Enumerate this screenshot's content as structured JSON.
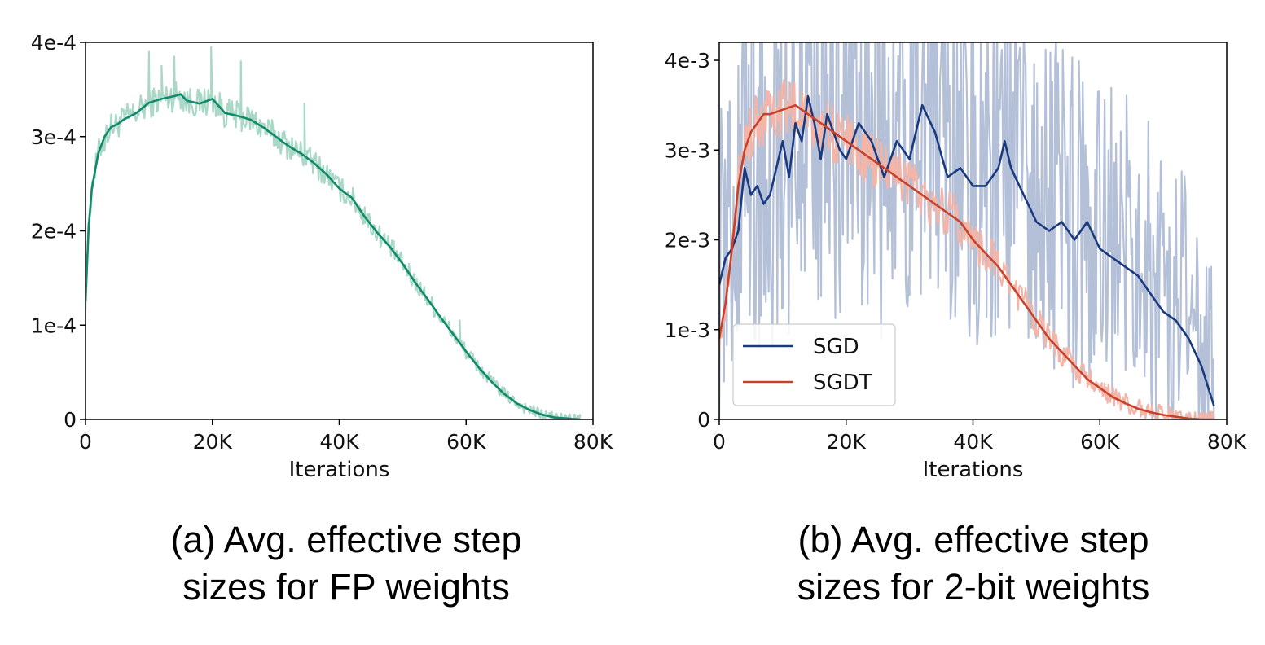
{
  "chart_data": [
    {
      "type": "line",
      "caption_lines": [
        "(a) Avg. effective step",
        "sizes for FP weights"
      ],
      "xlabel": "Iterations",
      "ylabel": "",
      "xlim": [
        0,
        80000
      ],
      "ylim": [
        0,
        0.0004
      ],
      "xticks": [
        0,
        20000,
        40000,
        60000,
        80000
      ],
      "xtick_labels": [
        "0",
        "20K",
        "40K",
        "60K",
        "80K"
      ],
      "yticks": [
        0,
        0.0001,
        0.0002,
        0.0003,
        0.0004
      ],
      "ytick_labels": [
        "0",
        "1e-4",
        "2e-4",
        "3e-4",
        "4e-4"
      ],
      "grid": false,
      "legend": null,
      "series": [
        {
          "color": "#118a6b",
          "raw_color": "#a9d9c6",
          "x": [
            0,
            500,
            1000,
            2000,
            3000,
            4000,
            5000,
            6000,
            8000,
            10000,
            12000,
            14000,
            15000,
            16000,
            18000,
            20000,
            22000,
            24000,
            26000,
            28000,
            30000,
            32000,
            34000,
            36000,
            38000,
            40000,
            42000,
            44000,
            46000,
            48000,
            50000,
            52000,
            54000,
            56000,
            58000,
            60000,
            62000,
            64000,
            66000,
            68000,
            70000,
            72000,
            74000,
            76000,
            78000
          ],
          "values": [
            0.000125,
            0.000205,
            0.000245,
            0.000282,
            0.0003,
            0.00031,
            0.000313,
            0.000318,
            0.000325,
            0.000336,
            0.00034,
            0.000343,
            0.000345,
            0.000338,
            0.000335,
            0.00034,
            0.000325,
            0.000322,
            0.000318,
            0.00031,
            0.0003,
            0.00029,
            0.000282,
            0.000272,
            0.00026,
            0.000245,
            0.000235,
            0.000215,
            0.000198,
            0.000183,
            0.000165,
            0.000145,
            0.000127,
            0.000108,
            9e-05,
            7.2e-05,
            5.5e-05,
            4e-05,
            2.7e-05,
            1.7e-05,
            1e-05,
            5e-06,
            2e-06,
            1e-06,
            0
          ],
          "raw_spikes": [
            [
              3000,
              0.000285
            ],
            [
              10000,
              0.00039
            ],
            [
              12000,
              0.000375
            ],
            [
              14000,
              0.000385
            ],
            [
              19800,
              0.000395
            ],
            [
              24500,
              0.00038
            ],
            [
              34500,
              0.000335
            ],
            [
              44000,
              0.000225
            ],
            [
              59000,
              0.000105
            ]
          ]
        }
      ]
    },
    {
      "type": "line",
      "caption_lines": [
        "(b) Avg. effective step",
        "sizes for 2-bit weights"
      ],
      "xlabel": "Iterations",
      "ylabel": "",
      "xlim": [
        0,
        80000
      ],
      "ylim": [
        0,
        0.0042
      ],
      "xticks": [
        0,
        20000,
        40000,
        60000,
        80000
      ],
      "xtick_labels": [
        "0",
        "20K",
        "40K",
        "60K",
        "80K"
      ],
      "yticks": [
        0,
        0.001,
        0.002,
        0.003,
        0.004
      ],
      "ytick_labels": [
        "0",
        "1e-3",
        "2e-3",
        "3e-3",
        "4e-3"
      ],
      "grid": false,
      "legend": "lower-left",
      "series": [
        {
          "name": "SGD",
          "color": "#1a3a80",
          "raw_color": "#b4c0d8",
          "x": [
            0,
            1000,
            2000,
            3000,
            4000,
            5000,
            6000,
            7000,
            8000,
            9000,
            10000,
            11000,
            12000,
            13000,
            14000,
            15000,
            16000,
            17000,
            18000,
            19000,
            20000,
            22000,
            24000,
            26000,
            28000,
            30000,
            32000,
            34000,
            36000,
            38000,
            40000,
            42000,
            44000,
            45000,
            46000,
            48000,
            50000,
            52000,
            54000,
            56000,
            58000,
            60000,
            62000,
            64000,
            66000,
            68000,
            70000,
            72000,
            74000,
            76000,
            78000
          ],
          "values": [
            0.0015,
            0.0018,
            0.0019,
            0.0021,
            0.0028,
            0.0025,
            0.0026,
            0.0024,
            0.0025,
            0.0028,
            0.0031,
            0.0027,
            0.0033,
            0.0031,
            0.0036,
            0.0033,
            0.0029,
            0.0034,
            0.0032,
            0.003,
            0.0029,
            0.0033,
            0.0031,
            0.0027,
            0.0031,
            0.0029,
            0.0035,
            0.0032,
            0.0027,
            0.0028,
            0.0026,
            0.0026,
            0.0028,
            0.0031,
            0.0028,
            0.0025,
            0.0022,
            0.0021,
            0.0022,
            0.002,
            0.0022,
            0.0019,
            0.0018,
            0.0017,
            0.0016,
            0.0014,
            0.0012,
            0.0011,
            0.0009,
            0.0006,
            0.00015
          ]
        },
        {
          "name": "SGDT",
          "color": "#c8412a",
          "raw_color": "#f2b5a8",
          "x": [
            0,
            1000,
            2000,
            3000,
            4000,
            5000,
            6000,
            7000,
            8000,
            10000,
            12000,
            14000,
            16000,
            18000,
            20000,
            22000,
            24000,
            26000,
            28000,
            30000,
            32000,
            34000,
            36000,
            38000,
            40000,
            42000,
            44000,
            46000,
            48000,
            50000,
            52000,
            54000,
            56000,
            58000,
            60000,
            62000,
            64000,
            66000,
            68000,
            70000,
            72000,
            74000,
            76000,
            78000
          ],
          "values": [
            0.0009,
            0.0013,
            0.0019,
            0.0026,
            0.003,
            0.0032,
            0.0033,
            0.0034,
            0.0034,
            0.00345,
            0.0035,
            0.0034,
            0.0033,
            0.0032,
            0.0031,
            0.003,
            0.0029,
            0.0028,
            0.0027,
            0.0026,
            0.0025,
            0.0024,
            0.0023,
            0.0022,
            0.002,
            0.00185,
            0.0017,
            0.0015,
            0.0013,
            0.0011,
            0.0009,
            0.00075,
            0.0006,
            0.00045,
            0.00035,
            0.00025,
            0.00018,
            0.00012,
            8e-05,
            5e-05,
            3e-05,
            1e-05,
            0,
            0
          ]
        }
      ]
    }
  ]
}
